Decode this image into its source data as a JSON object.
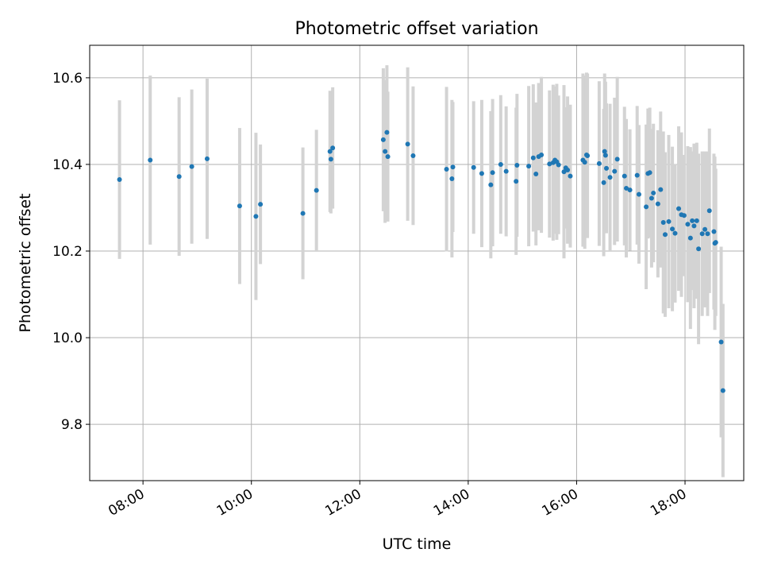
{
  "chart_data": {
    "type": "scatter",
    "title": "Photometric offset variation",
    "xlabel": "UTC time",
    "ylabel": "Photometric offset",
    "xlim": [
      "07:01",
      "19:05"
    ],
    "ylim": [
      9.67,
      10.675
    ],
    "grid": true,
    "x_ticks": [
      "08:00",
      "10:00",
      "12:00",
      "14:00",
      "16:00",
      "18:00"
    ],
    "y_ticks": [
      "9.8",
      "10.0",
      "10.2",
      "10.4",
      "10.6"
    ],
    "colors": {
      "points": "#1f77b4",
      "errorbars": "#d3d3d3",
      "grid": "#b0b0b0"
    },
    "series": [
      {
        "x": [
          "07:34",
          "08:08",
          "08:40",
          "08:54",
          "09:11",
          "09:47",
          "10:05",
          "10:10",
          "10:57",
          "11:12",
          "11:27",
          "11:28",
          "11:30",
          "12:26",
          "12:28",
          "12:30",
          "12:31",
          "12:53",
          "12:59",
          "13:36",
          "13:42",
          "13:43",
          "14:06",
          "14:15",
          "14:25",
          "14:27",
          "14:36",
          "14:42",
          "14:53",
          "14:54",
          "15:07",
          "15:12",
          "15:15",
          "15:18",
          "15:21",
          "15:30",
          "15:34",
          "15:36",
          "15:38",
          "15:40",
          "15:46",
          "15:48",
          "15:50",
          "15:53",
          "16:07",
          "16:09",
          "16:11",
          "16:12",
          "16:25",
          "16:30",
          "16:31",
          "16:32",
          "16:33",
          "16:37",
          "16:42",
          "16:45",
          "16:53",
          "16:55",
          "16:59",
          "17:07",
          "17:09",
          "17:17",
          "17:19",
          "17:21",
          "17:23",
          "17:25",
          "17:30",
          "17:33",
          "17:36",
          "17:38",
          "17:42",
          "17:46",
          "17:49",
          "17:53",
          "17:56",
          "17:59",
          "18:03",
          "18:06",
          "18:08",
          "18:10",
          "18:13",
          "18:15",
          "18:19",
          "18:22",
          "18:25",
          "18:27",
          "18:32",
          "18:33",
          "18:34",
          "18:40",
          "18:42"
        ],
        "y": [
          10.365,
          10.41,
          10.372,
          10.395,
          10.413,
          10.304,
          10.28,
          10.308,
          10.287,
          10.34,
          10.43,
          10.412,
          10.438,
          10.457,
          10.43,
          10.474,
          10.418,
          10.447,
          10.42,
          10.389,
          10.367,
          10.394,
          10.393,
          10.379,
          10.353,
          10.381,
          10.4,
          10.384,
          10.361,
          10.398,
          10.396,
          10.415,
          10.378,
          10.418,
          10.422,
          10.401,
          10.404,
          10.41,
          10.406,
          10.399,
          10.383,
          10.392,
          10.387,
          10.373,
          10.41,
          10.405,
          10.422,
          10.42,
          10.402,
          10.358,
          10.43,
          10.421,
          10.391,
          10.37,
          10.384,
          10.412,
          10.373,
          10.345,
          10.341,
          10.375,
          10.331,
          10.302,
          10.379,
          10.381,
          10.322,
          10.334,
          10.309,
          10.342,
          10.266,
          10.238,
          10.268,
          10.251,
          10.241,
          10.298,
          10.284,
          10.282,
          10.262,
          10.23,
          10.27,
          10.258,
          10.27,
          10.205,
          10.24,
          10.25,
          10.24,
          10.293,
          10.245,
          10.218,
          10.22,
          9.99,
          9.878
        ],
        "err": [
          0.183,
          0.195,
          0.183,
          0.178,
          0.185,
          0.18,
          0.193,
          0.138,
          0.152,
          0.14,
          0.14,
          0.125,
          0.14,
          0.165,
          0.165,
          0.155,
          0.15,
          0.177,
          0.16,
          0.19,
          0.182,
          0.15,
          0.153,
          0.17,
          0.17,
          0.17,
          0.16,
          0.15,
          0.17,
          0.165,
          0.185,
          0.17,
          0.165,
          0.17,
          0.18,
          0.17,
          0.18,
          0.17,
          0.18,
          0.16,
          0.2,
          0.14,
          0.17,
          0.165,
          0.2,
          0.2,
          0.19,
          0.19,
          0.19,
          0.17,
          0.18,
          0.17,
          0.15,
          0.17,
          0.17,
          0.19,
          0.16,
          0.16,
          0.14,
          0.16,
          0.16,
          0.19,
          0.15,
          0.15,
          0.16,
          0.16,
          0.17,
          0.18,
          0.21,
          0.19,
          0.2,
          0.19,
          0.16,
          0.19,
          0.19,
          0.14,
          0.18,
          0.21,
          0.16,
          0.19,
          0.18,
          0.22,
          0.19,
          0.18,
          0.19,
          0.19,
          0.18,
          0.2,
          0.17,
          0.22,
          0.2
        ]
      }
    ]
  }
}
